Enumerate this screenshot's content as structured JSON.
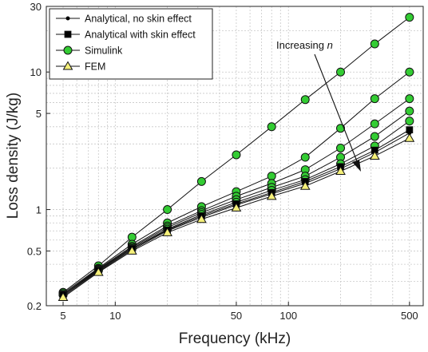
{
  "chart_data": {
    "type": "line",
    "title": "",
    "xlabel": "Frequency (kHz)",
    "ylabel": "Loss density (J/kg)",
    "xscale": "log",
    "yscale": "log",
    "xlim": [
      4,
      600
    ],
    "ylim": [
      0.2,
      30
    ],
    "grid": true,
    "legend_position": "top-left",
    "x_ticks": [
      5,
      10,
      50,
      100,
      500
    ],
    "x_tick_labels": [
      "5",
      "10",
      "50",
      "100",
      "500"
    ],
    "y_ticks": [
      0.2,
      0.5,
      1,
      5,
      10,
      30
    ],
    "y_tick_labels": [
      "0.2",
      "0.5",
      "1",
      "5",
      "10",
      "30"
    ],
    "x": [
      5,
      8,
      12.5,
      20,
      31.5,
      50,
      80,
      125,
      200,
      315,
      500
    ],
    "series": [
      {
        "name": "Simulink",
        "marker": "circle",
        "color": "#33cc33",
        "values": [
          0.25,
          0.39,
          0.63,
          1.0,
          1.6,
          2.5,
          4.0,
          6.3,
          10.0,
          16.0,
          25.0
        ]
      },
      {
        "name": "",
        "marker": "circle",
        "color": "#33cc33",
        "values": [
          0.245,
          0.375,
          0.56,
          0.8,
          1.05,
          1.35,
          1.75,
          2.4,
          3.9,
          6.4,
          10.0
        ]
      },
      {
        "name": "",
        "marker": "circle",
        "color": "#33cc33",
        "values": [
          0.24,
          0.37,
          0.54,
          0.76,
          0.98,
          1.25,
          1.55,
          1.95,
          2.8,
          4.2,
          6.4
        ]
      },
      {
        "name": "",
        "marker": "circle",
        "color": "#33cc33",
        "values": [
          0.24,
          0.365,
          0.53,
          0.74,
          0.95,
          1.18,
          1.45,
          1.75,
          2.4,
          3.4,
          5.2
        ]
      },
      {
        "name": "",
        "marker": "circle",
        "color": "#33cc33",
        "values": [
          0.24,
          0.36,
          0.52,
          0.72,
          0.92,
          1.13,
          1.38,
          1.65,
          2.15,
          2.9,
          4.4
        ]
      },
      {
        "name": "Analytical with skin effect",
        "marker": "square",
        "color": "#000000",
        "values": [
          0.24,
          0.36,
          0.52,
          0.71,
          0.9,
          1.1,
          1.33,
          1.6,
          2.05,
          2.7,
          3.8
        ]
      },
      {
        "name": "Analytical, no skin effect",
        "marker": "dot",
        "color": "#000000",
        "values": [
          0.235,
          0.355,
          0.51,
          0.7,
          0.88,
          1.08,
          1.3,
          1.55,
          1.98,
          2.6,
          3.6
        ]
      },
      {
        "name": "FEM",
        "marker": "triangle",
        "color": "#f5f07a",
        "values": [
          0.23,
          0.35,
          0.5,
          0.68,
          0.85,
          1.03,
          1.25,
          1.48,
          1.9,
          2.45,
          3.3
        ]
      }
    ],
    "legend": [
      {
        "label": "Analytical, no skin effect",
        "marker": "dot",
        "color": "#000000"
      },
      {
        "label": "Analytical with skin effect",
        "marker": "square",
        "color": "#000000"
      },
      {
        "label": "Simulink",
        "marker": "circle",
        "color": "#33cc33"
      },
      {
        "label": "FEM",
        "marker": "triangle",
        "color": "#f5f07a"
      }
    ],
    "annotation": {
      "text": "Increasing ",
      "italic_text": "n"
    }
  }
}
